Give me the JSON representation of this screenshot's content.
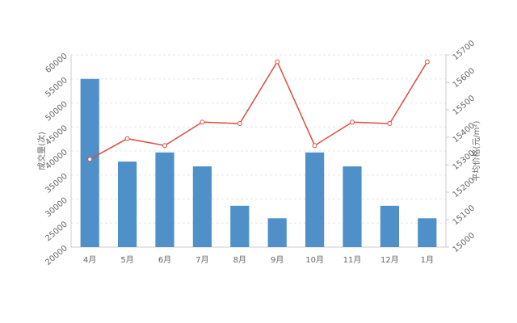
{
  "chart_data": {
    "type": "bar-line",
    "categories": [
      "4月",
      "5月",
      "6月",
      "7月",
      "8月",
      "9月",
      "10月",
      "11月",
      "12月",
      "1月"
    ],
    "series": [
      {
        "name": "成交量",
        "type": "bar",
        "color": "#4f90c8",
        "values": [
          55000,
          37800,
          39700,
          36800,
          28600,
          26000,
          39700,
          36800,
          28600,
          26000
        ]
      },
      {
        "name": "平均价格",
        "type": "line",
        "axis": "y2",
        "color": "#e04a3f",
        "values": [
          15320,
          15395,
          15370,
          15455,
          15450,
          15675,
          15370,
          15455,
          15450,
          15675
        ]
      }
    ],
    "y_label": "成交量(次)",
    "y2_label": "平均价格(元/m²)",
    "ylim": [
      20000,
      60000
    ],
    "yticks": [
      20000,
      25000,
      30000,
      35000,
      40000,
      45000,
      50000,
      55000,
      60000
    ],
    "y2lim": [
      15000,
      15700
    ],
    "y2ticks": [
      15000,
      15100,
      15200,
      15300,
      15400,
      15500,
      15600,
      15700
    ],
    "grid": true
  }
}
